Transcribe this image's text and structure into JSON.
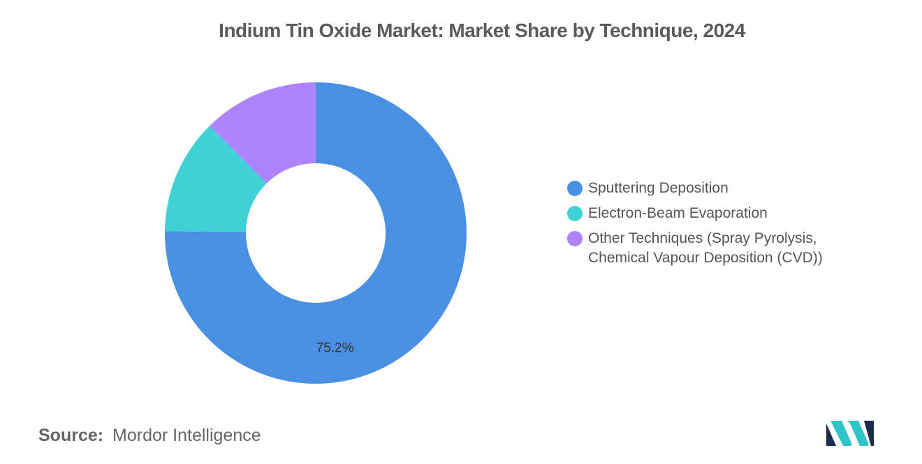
{
  "chart_data": {
    "type": "pie",
    "title": "Indium Tin Oxide Market: Market Share by Technique, 2024",
    "series": [
      {
        "name": "Sputtering Deposition",
        "value": 75.2,
        "color": "#4a90e2",
        "label": "75.2%"
      },
      {
        "name": "Electron-Beam Evaporation",
        "value": 12.4,
        "color": "#3fd1d6",
        "label": ""
      },
      {
        "name": "Other Techniques (Spray Pyrolysis, Chemical Vapour Deposition (CVD))",
        "value": 12.4,
        "color": "#ad84fb",
        "label": ""
      }
    ],
    "legend_placement": "right",
    "donut": true
  },
  "legend": {
    "items": [
      {
        "label": "Sputtering Deposition",
        "color": "#4a90e2"
      },
      {
        "label": "Electron-Beam Evaporation",
        "color": "#3fd1d6"
      },
      {
        "label": "Other Techniques (Spray Pyrolysis, Chemical Vapour Deposition (CVD))",
        "color": "#ad84fb"
      }
    ]
  },
  "source": {
    "label": "Source:",
    "value": "Mordor Intelligence"
  },
  "logo": {
    "icon": "mordor-intelligence-logo-icon",
    "colors": [
      "#1d2c4d",
      "#2ec4c9"
    ]
  }
}
